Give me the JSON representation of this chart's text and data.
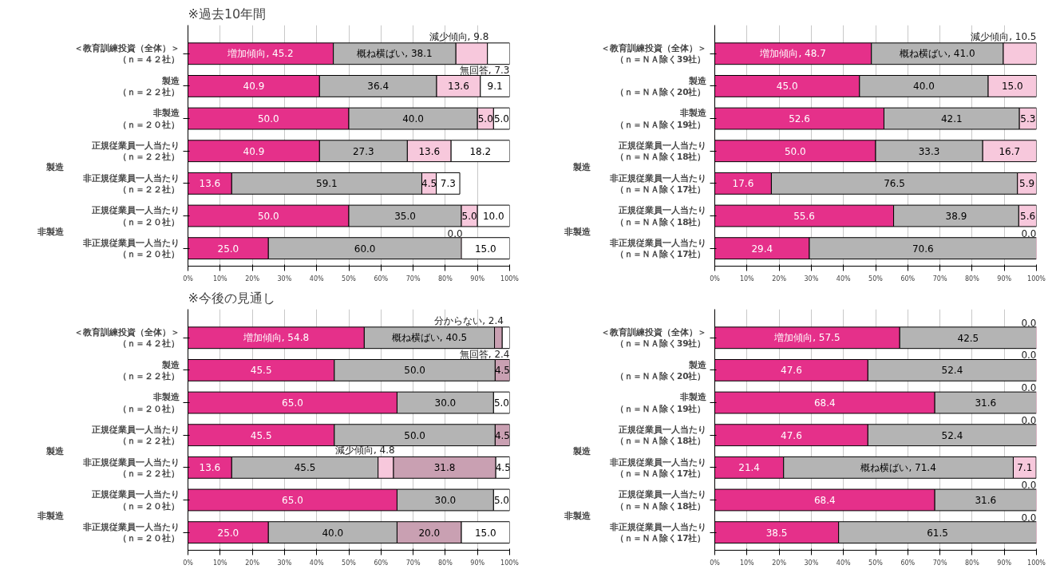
{
  "chart_data": [
    {
      "type": "bar",
      "orientation": "horizontal",
      "stacked": true,
      "title": "※過去10年間",
      "categories": [
        "＜教育訓練投資（全体）＞（ｎ＝４２社）",
        "製造（ｎ＝２２社）",
        "非製造（ｎ＝２０社）",
        "正規従業員一人当たり（ｎ＝２２社）",
        "非正規従業員一人当たり（ｎ＝２２社）",
        "正規従業員一人当たり（ｎ＝２０社）",
        "非正規従業員一人当たり（ｎ＝２０社）"
      ],
      "annotations": [
        "製造",
        "非製造"
      ],
      "xlim": [
        0,
        100
      ],
      "xticks": [
        {
          "value": 0,
          "label": "0%"
        },
        {
          "value": 10,
          "label": "10%"
        },
        {
          "value": 20,
          "label": "20%"
        },
        {
          "value": 30,
          "label": "30%"
        },
        {
          "value": 40,
          "label": "40%"
        },
        {
          "value": 50,
          "label": "50%"
        },
        {
          "value": 60,
          "label": "60%"
        },
        {
          "value": 70,
          "label": "70%"
        },
        {
          "value": 80,
          "label": "80%"
        },
        {
          "value": 90,
          "label": "90%"
        },
        {
          "value": 100,
          "label": "100%"
        }
      ],
      "grid": "x",
      "series": [
        {
          "color": "#e5308a",
          "values": [
            45.2,
            40.9,
            50.0,
            40.9,
            13.6,
            50.0,
            25.0
          ],
          "value_labels": [
            "増加傾向, 45.2",
            "40.9",
            "50.0",
            "40.9",
            "13.6",
            "50.0",
            "25.0"
          ]
        },
        {
          "color": "#b4b4b4",
          "values": [
            38.1,
            36.4,
            40.0,
            27.3,
            59.1,
            35.0,
            60.0
          ],
          "value_labels": [
            "概ね横ばい, 38.1",
            "36.4",
            "40.0",
            "27.3",
            "59.1",
            "35.0",
            "60.0"
          ]
        },
        {
          "color": "#f7c8dc",
          "values": [
            9.8,
            13.6,
            5.0,
            13.6,
            4.5,
            5.0,
            0.0
          ],
          "value_labels": [
            "減少傾向, 9.8",
            "13.6",
            "5.0",
            "13.6",
            "4.5",
            "5.0",
            "0.0"
          ]
        },
        {
          "color": "#ffffff",
          "values": [
            7.3,
            9.1,
            5.0,
            18.2,
            7.3,
            10.0,
            15.0
          ],
          "value_labels": [
            "無回答, 7.3",
            "9.1",
            "5.0",
            "18.2",
            "7.3",
            "10.0",
            "15.0"
          ]
        }
      ]
    },
    {
      "type": "bar",
      "orientation": "horizontal",
      "stacked": true,
      "categories": [
        "＜教育訓練投資（全体）＞（ｎ＝ＮＡ除く39社）",
        "製造（ｎ＝ＮＡ除く20社）",
        "非製造（ｎ＝ＮＡ除く19社）",
        "正規従業員一人当たり（ｎ＝ＮＡ除く18社）",
        "非正規従業員一人当たり（ｎ＝ＮＡ除く17社）",
        "正規従業員一人当たり（ｎ＝ＮＡ除く18社）",
        "非正規従業員一人当たり（ｎ＝ＮＡ除く17社）"
      ],
      "annotations": [
        "製造",
        "非製造"
      ],
      "xlim": [
        0,
        100
      ],
      "xticks": [
        {
          "value": 0,
          "label": "0%"
        },
        {
          "value": 10,
          "label": "10%"
        },
        {
          "value": 20,
          "label": "20%"
        },
        {
          "value": 30,
          "label": "30%"
        },
        {
          "value": 40,
          "label": "40%"
        },
        {
          "value": 50,
          "label": "50%"
        },
        {
          "value": 60,
          "label": "60%"
        },
        {
          "value": 70,
          "label": "70%"
        },
        {
          "value": 80,
          "label": "80%"
        },
        {
          "value": 90,
          "label": "90%"
        },
        {
          "value": 100,
          "label": "100%"
        }
      ],
      "grid": "x",
      "series": [
        {
          "color": "#e5308a",
          "values": [
            48.7,
            45.0,
            52.6,
            50.0,
            17.6,
            55.6,
            29.4
          ],
          "value_labels": [
            "増加傾向, 48.7",
            "45.0",
            "52.6",
            "50.0",
            "17.6",
            "55.6",
            "29.4"
          ]
        },
        {
          "color": "#b4b4b4",
          "values": [
            41.0,
            40.0,
            42.1,
            33.3,
            76.5,
            38.9,
            70.6
          ],
          "value_labels": [
            "概ね横ばい, 41.0",
            "40.0",
            "42.1",
            "33.3",
            "76.5",
            "38.9",
            "70.6"
          ]
        },
        {
          "color": "#f7c8dc",
          "values": [
            10.5,
            15.0,
            5.3,
            16.7,
            5.9,
            5.6,
            0.0
          ],
          "value_labels": [
            "減少傾向, 10.5",
            "15.0",
            "5.3",
            "16.7",
            "5.9",
            "5.6",
            "0.0"
          ]
        }
      ]
    },
    {
      "type": "bar",
      "orientation": "horizontal",
      "stacked": true,
      "title": "※今後の見通し",
      "categories": [
        "＜教育訓練投資（全体）＞（ｎ＝４２社）",
        "製造（ｎ＝２２社）",
        "非製造（ｎ＝２０社）",
        "正規従業員一人当たり（ｎ＝２２社）",
        "非正規従業員一人当たり（ｎ＝２２社）",
        "正規従業員一人当たり（ｎ＝２０社）",
        "非正規従業員一人当たり（ｎ＝２０社）"
      ],
      "annotations": [
        "製造",
        "非製造"
      ],
      "xlim": [
        0,
        100
      ],
      "xticks": [
        {
          "value": 0,
          "label": "0%"
        },
        {
          "value": 10,
          "label": "10%"
        },
        {
          "value": 20,
          "label": "20%"
        },
        {
          "value": 30,
          "label": "30%"
        },
        {
          "value": 40,
          "label": "40%"
        },
        {
          "value": 50,
          "label": "50%"
        },
        {
          "value": 60,
          "label": "60%"
        },
        {
          "value": 70,
          "label": "70%"
        },
        {
          "value": 80,
          "label": "80%"
        },
        {
          "value": 90,
          "label": "90%"
        },
        {
          "value": 100,
          "label": "100%"
        }
      ],
      "grid": "x",
      "series": [
        {
          "color": "#e5308a",
          "values": [
            54.8,
            45.5,
            65.0,
            45.5,
            13.6,
            65.0,
            25.0
          ],
          "value_labels": [
            "増加傾向, 54.8",
            "45.5",
            "65.0",
            "45.5",
            "13.6",
            "65.0",
            "25.0"
          ]
        },
        {
          "color": "#b4b4b4",
          "values": [
            40.5,
            50.0,
            30.0,
            50.0,
            45.5,
            30.0,
            40.0
          ],
          "value_labels": [
            "概ね横ばい, 40.5",
            "50.0",
            "30.0",
            "50.0",
            "45.5",
            "30.0",
            "40.0"
          ]
        },
        {
          "color": "#f7c8dc",
          "values": [
            null,
            null,
            null,
            null,
            4.8,
            null,
            null
          ],
          "value_labels": [
            null,
            null,
            null,
            null,
            "減少傾向, 4.8",
            null,
            null
          ]
        },
        {
          "color": "#c9a0b2",
          "values": [
            2.4,
            4.5,
            null,
            4.5,
            31.8,
            null,
            20.0
          ],
          "value_labels": [
            "分からない, 2.4",
            "4.5",
            null,
            "4.5",
            "31.8",
            null,
            "20.0"
          ]
        },
        {
          "color": "#ffffff",
          "values": [
            2.4,
            null,
            5.0,
            null,
            4.5,
            5.0,
            15.0
          ],
          "value_labels": [
            "無回答, 2.4",
            null,
            "5.0",
            null,
            "4.5",
            "5.0",
            "15.0"
          ]
        }
      ]
    },
    {
      "type": "bar",
      "orientation": "horizontal",
      "stacked": true,
      "categories": [
        "＜教育訓練投資（全体）＞（ｎ＝ＮＡ除く39社）",
        "製造（ｎ＝ＮＡ除く20社）",
        "非製造（ｎ＝ＮＡ除く19社）",
        "正規従業員一人当たり（ｎ＝ＮＡ除く18社）",
        "非正規従業員一人当たり（ｎ＝ＮＡ除く17社）",
        "正規従業員一人当たり（ｎ＝ＮＡ除く18社）",
        "非正規従業員一人当たり（ｎ＝ＮＡ除く17社）"
      ],
      "annotations": [
        "製造",
        "非製造"
      ],
      "xlim": [
        0,
        100
      ],
      "xticks": [
        {
          "value": 0,
          "label": "0%"
        },
        {
          "value": 10,
          "label": "10%"
        },
        {
          "value": 20,
          "label": "20%"
        },
        {
          "value": 30,
          "label": "30%"
        },
        {
          "value": 40,
          "label": "40%"
        },
        {
          "value": 50,
          "label": "50%"
        },
        {
          "value": 60,
          "label": "60%"
        },
        {
          "value": 70,
          "label": "70%"
        },
        {
          "value": 80,
          "label": "80%"
        },
        {
          "value": 90,
          "label": "90%"
        },
        {
          "value": 100,
          "label": "100%"
        }
      ],
      "grid": "x",
      "series": [
        {
          "color": "#e5308a",
          "values": [
            57.5,
            47.6,
            68.4,
            47.6,
            21.4,
            68.4,
            38.5
          ],
          "value_labels": [
            "増加傾向, 57.5",
            "47.6",
            "68.4",
            "47.6",
            "21.4",
            "68.4",
            "38.5"
          ]
        },
        {
          "color": "#b4b4b4",
          "values": [
            42.5,
            52.4,
            31.6,
            52.4,
            71.4,
            31.6,
            61.5
          ],
          "value_labels": [
            "42.5",
            "52.4",
            "31.6",
            "52.4",
            "概ね横ばい, 71.4",
            "31.6",
            "61.5"
          ]
        },
        {
          "color": "#f7c8dc",
          "values": [
            0.0,
            0.0,
            0.0,
            0.0,
            7.1,
            0.0,
            0.0
          ],
          "value_labels": [
            "0.0",
            "0.0",
            "0.0",
            "0.0",
            "7.1",
            "0.0",
            "0.0"
          ]
        }
      ]
    }
  ]
}
